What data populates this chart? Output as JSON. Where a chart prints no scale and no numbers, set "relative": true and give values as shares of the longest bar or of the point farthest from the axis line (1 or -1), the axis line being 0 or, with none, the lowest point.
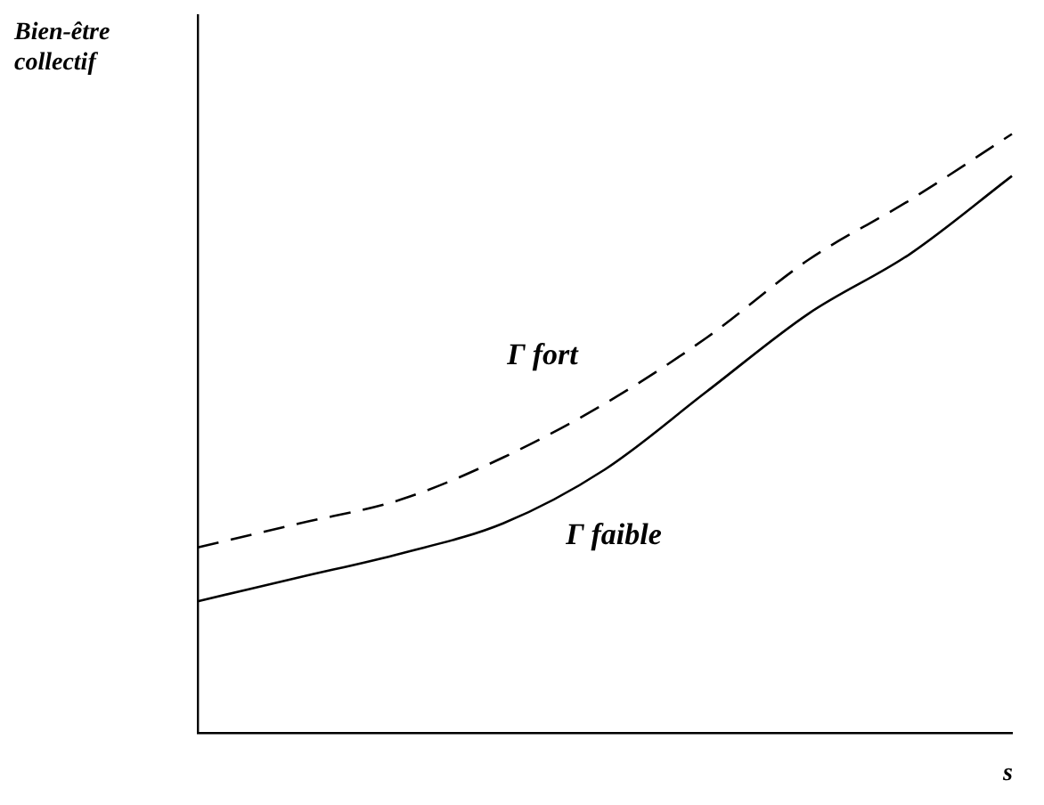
{
  "chart_data": {
    "type": "line",
    "relative": true,
    "xlabel": "s",
    "ylabel": "Bien-être collectif",
    "categories": [
      null,
      null,
      null,
      null,
      null,
      null,
      null,
      null,
      null
    ],
    "series": [
      {
        "name": "Γ fort",
        "color": "#000000",
        "line_style": "dashed",
        "values": [
          0.31,
          0.35,
          0.39,
          0.46,
          0.55,
          0.66,
          0.79,
          0.89,
          1
        ]
      },
      {
        "name": "Γ faible",
        "color": "#000000",
        "line_style": "solid",
        "values": [
          0.22,
          0.26,
          0.3,
          0.35,
          0.44,
          0.57,
          0.7,
          0.8,
          0.93
        ]
      }
    ],
    "legend": false,
    "grid": false,
    "marker": "none"
  }
}
